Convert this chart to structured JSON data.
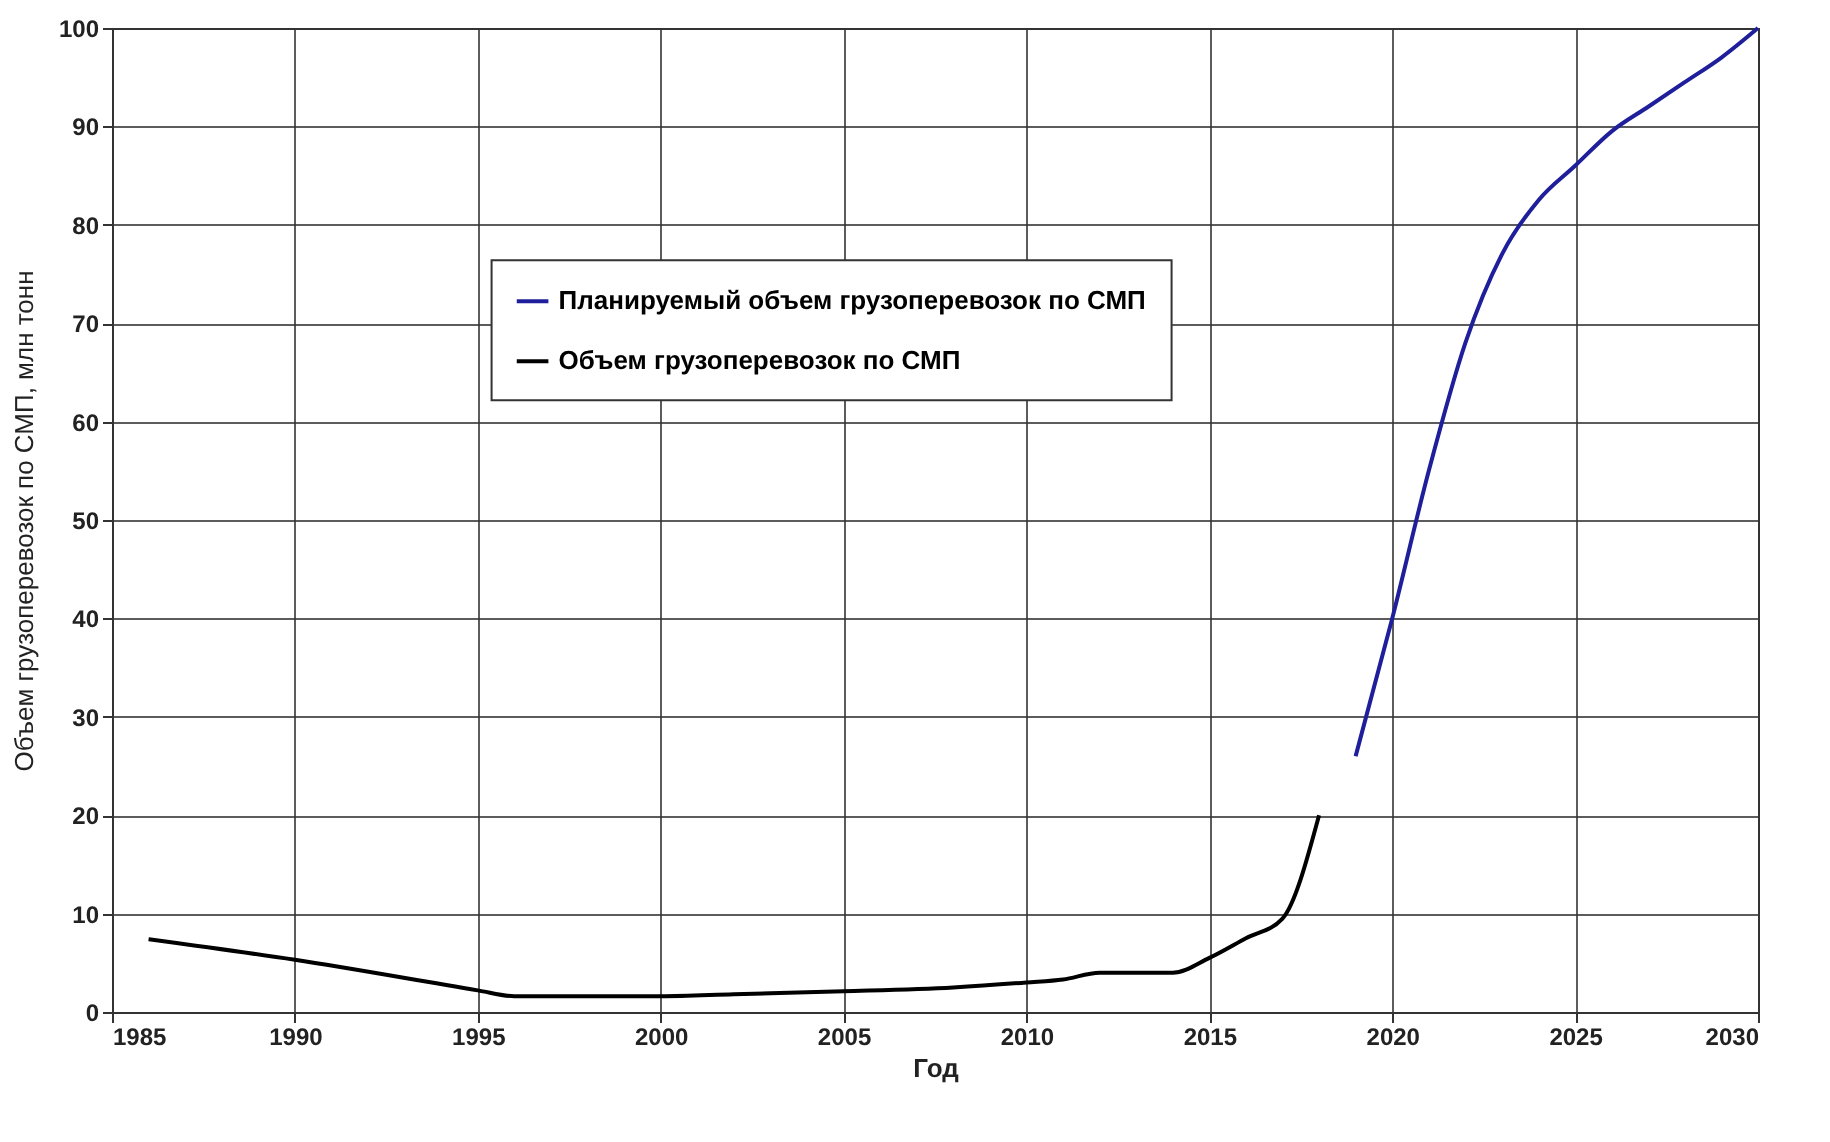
{
  "chart_data": {
    "type": "line",
    "xlabel": "Год",
    "ylabel": "Объем грузоперевозок по СМП, млн тонн",
    "xlim": [
      1985,
      2030
    ],
    "xticks": [
      1985,
      1990,
      1995,
      2000,
      2005,
      2010,
      2015,
      2020,
      2025,
      2030
    ],
    "ylim": [
      0,
      100
    ],
    "yticks": [
      0,
      10,
      20,
      30,
      40,
      50,
      60,
      70,
      80,
      90,
      100
    ],
    "grid": true,
    "legend": "top",
    "marker": "none",
    "line_style": "solid",
    "series": [
      {
        "name": "Планируемый объем грузоперевозок по СМП",
        "color": "#1f1f9c",
        "x": [
          2019,
          2020,
          2021,
          2022,
          2023,
          2024,
          2025,
          2026,
          2027,
          2028,
          2029,
          2030
        ],
        "values": [
          26,
          40,
          55,
          68,
          77,
          82.5,
          86,
          89.5,
          92,
          94.5,
          97,
          100
        ]
      },
      {
        "name": "Объем грузоперевозок по СМП",
        "color": "#000000",
        "x": [
          1986,
          1990,
          1995,
          1996,
          2000,
          2002,
          2005,
          2008,
          2010,
          2011,
          2012,
          2014,
          2015,
          2016,
          2017,
          2018
        ],
        "values": [
          7.4,
          5.3,
          2.2,
          1.6,
          1.6,
          1.8,
          2.1,
          2.5,
          3.0,
          3.3,
          4.0,
          4.0,
          5.5,
          7.5,
          9.5,
          20
        ]
      }
    ]
  }
}
